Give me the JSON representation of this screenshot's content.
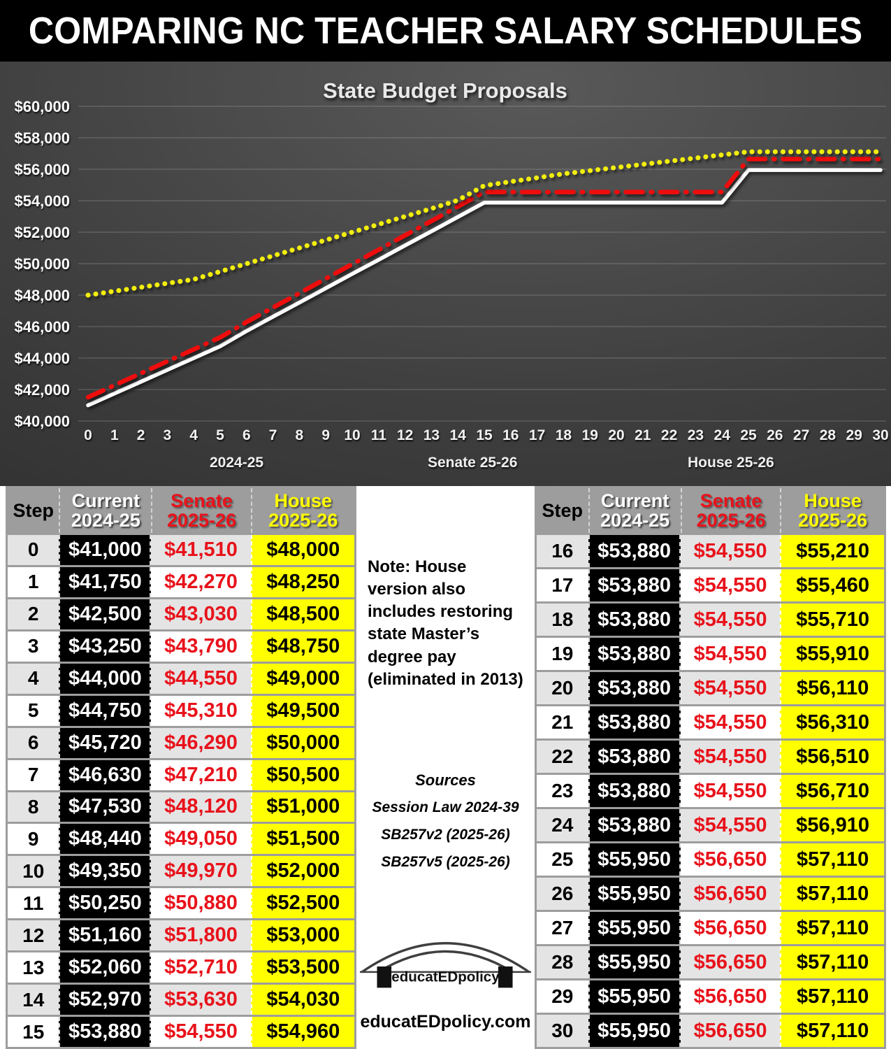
{
  "title": "COMPARING NC TEACHER SALARY SCHEDULES",
  "chart_data": {
    "type": "line",
    "title": "State Budget Proposals",
    "xlabel": "",
    "ylabel": "",
    "ylim": [
      40000,
      60000
    ],
    "x_ticks": [
      "0",
      "1",
      "2",
      "3",
      "4",
      "5",
      "6",
      "7",
      "8",
      "9",
      "10",
      "11",
      "12",
      "13",
      "14",
      "15",
      "16",
      "17",
      "18",
      "19",
      "20",
      "21",
      "22",
      "23",
      "24",
      "25",
      "26",
      "27",
      "28",
      "29",
      "30"
    ],
    "y_ticks": [
      60000,
      58000,
      56000,
      54000,
      52000,
      50000,
      48000,
      46000,
      44000,
      42000,
      40000
    ],
    "y_tick_labels": [
      "$60,000",
      "$58,000",
      "$56,000",
      "$54,000",
      "$52,000",
      "$50,000",
      "$48,000",
      "$46,000",
      "$44,000",
      "$42,000",
      "$40,000"
    ],
    "grid": true,
    "legend_position": "bottom",
    "legend": [
      "2024-25",
      "Senate 25-26",
      "House 25-26"
    ],
    "series": [
      {
        "name": "2024-25",
        "color": "#ffffff",
        "style": "solid",
        "width": 5.5,
        "values": [
          41000,
          41750,
          42500,
          43250,
          44000,
          44750,
          45720,
          46630,
          47530,
          48440,
          49350,
          50250,
          51160,
          52060,
          52970,
          53880,
          53880,
          53880,
          53880,
          53880,
          53880,
          53880,
          53880,
          53880,
          53880,
          55950,
          55950,
          55950,
          55950,
          55950,
          55950
        ]
      },
      {
        "name": "Senate 25-26",
        "color": "#ee1111",
        "style": "dash-dot",
        "width": 6.5,
        "values": [
          41510,
          42270,
          43030,
          43790,
          44550,
          45310,
          46290,
          47210,
          48120,
          49050,
          49970,
          50880,
          51800,
          52710,
          53630,
          54550,
          54550,
          54550,
          54550,
          54550,
          54550,
          54550,
          54550,
          54550,
          54550,
          56650,
          56650,
          56650,
          56650,
          56650,
          56650
        ]
      },
      {
        "name": "House 25-26",
        "color": "#f2ee10",
        "style": "dotted",
        "width": 7,
        "values": [
          48000,
          48250,
          48500,
          48750,
          49000,
          49500,
          50000,
          50500,
          51000,
          51500,
          52000,
          52500,
          53000,
          53500,
          54030,
          54960,
          55210,
          55460,
          55710,
          55910,
          56110,
          56310,
          56510,
          56710,
          56910,
          57110,
          57110,
          57110,
          57110,
          57110,
          57110
        ]
      }
    ]
  },
  "tables": {
    "columns": [
      {
        "line1": "Step",
        "line2": ""
      },
      {
        "line1": "Current",
        "line2": "2024-25"
      },
      {
        "line1": "Senate",
        "line2": "2025-26"
      },
      {
        "line1": "House",
        "line2": "2025-26"
      }
    ],
    "left_rows": [
      [
        "0",
        "$41,000",
        "$41,510",
        "$48,000"
      ],
      [
        "1",
        "$41,750",
        "$42,270",
        "$48,250"
      ],
      [
        "2",
        "$42,500",
        "$43,030",
        "$48,500"
      ],
      [
        "3",
        "$43,250",
        "$43,790",
        "$48,750"
      ],
      [
        "4",
        "$44,000",
        "$44,550",
        "$49,000"
      ],
      [
        "5",
        "$44,750",
        "$45,310",
        "$49,500"
      ],
      [
        "6",
        "$45,720",
        "$46,290",
        "$50,000"
      ],
      [
        "7",
        "$46,630",
        "$47,210",
        "$50,500"
      ],
      [
        "8",
        "$47,530",
        "$48,120",
        "$51,000"
      ],
      [
        "9",
        "$48,440",
        "$49,050",
        "$51,500"
      ],
      [
        "10",
        "$49,350",
        "$49,970",
        "$52,000"
      ],
      [
        "11",
        "$50,250",
        "$50,880",
        "$52,500"
      ],
      [
        "12",
        "$51,160",
        "$51,800",
        "$53,000"
      ],
      [
        "13",
        "$52,060",
        "$52,710",
        "$53,500"
      ],
      [
        "14",
        "$52,970",
        "$53,630",
        "$54,030"
      ],
      [
        "15",
        "$53,880",
        "$54,550",
        "$54,960"
      ]
    ],
    "right_rows": [
      [
        "16",
        "$53,880",
        "$54,550",
        "$55,210"
      ],
      [
        "17",
        "$53,880",
        "$54,550",
        "$55,460"
      ],
      [
        "18",
        "$53,880",
        "$54,550",
        "$55,710"
      ],
      [
        "19",
        "$53,880",
        "$54,550",
        "$55,910"
      ],
      [
        "20",
        "$53,880",
        "$54,550",
        "$56,110"
      ],
      [
        "21",
        "$53,880",
        "$54,550",
        "$56,310"
      ],
      [
        "22",
        "$53,880",
        "$54,550",
        "$56,510"
      ],
      [
        "23",
        "$53,880",
        "$54,550",
        "$56,710"
      ],
      [
        "24",
        "$53,880",
        "$54,550",
        "$56,910"
      ],
      [
        "25",
        "$55,950",
        "$56,650",
        "$57,110"
      ],
      [
        "26",
        "$55,950",
        "$56,650",
        "$57,110"
      ],
      [
        "27",
        "$55,950",
        "$56,650",
        "$57,110"
      ],
      [
        "28",
        "$55,950",
        "$56,650",
        "$57,110"
      ],
      [
        "29",
        "$55,950",
        "$56,650",
        "$57,110"
      ],
      [
        "30",
        "$55,950",
        "$56,650",
        "$57,110"
      ]
    ]
  },
  "note": "Note: House version also includes restoring state Master’s degree pay (eliminated in 2013)",
  "sources": {
    "heading": "Sources",
    "items": [
      "Session Law 2024-39",
      "SB257v2 (2025-26)",
      "SB257v5 (2025-26)"
    ]
  },
  "logo": {
    "text": "educatEDpolicy"
  },
  "footer": "educatEDpolicy.com",
  "colors": {
    "senate_red": "#e8121b",
    "house_yellow": "#ffff00",
    "header_gray": "#9d9d9d",
    "current_black": "#000000",
    "line_white": "#ffffff",
    "line_red": "#ee1111",
    "line_yellow": "#f2ee10"
  }
}
